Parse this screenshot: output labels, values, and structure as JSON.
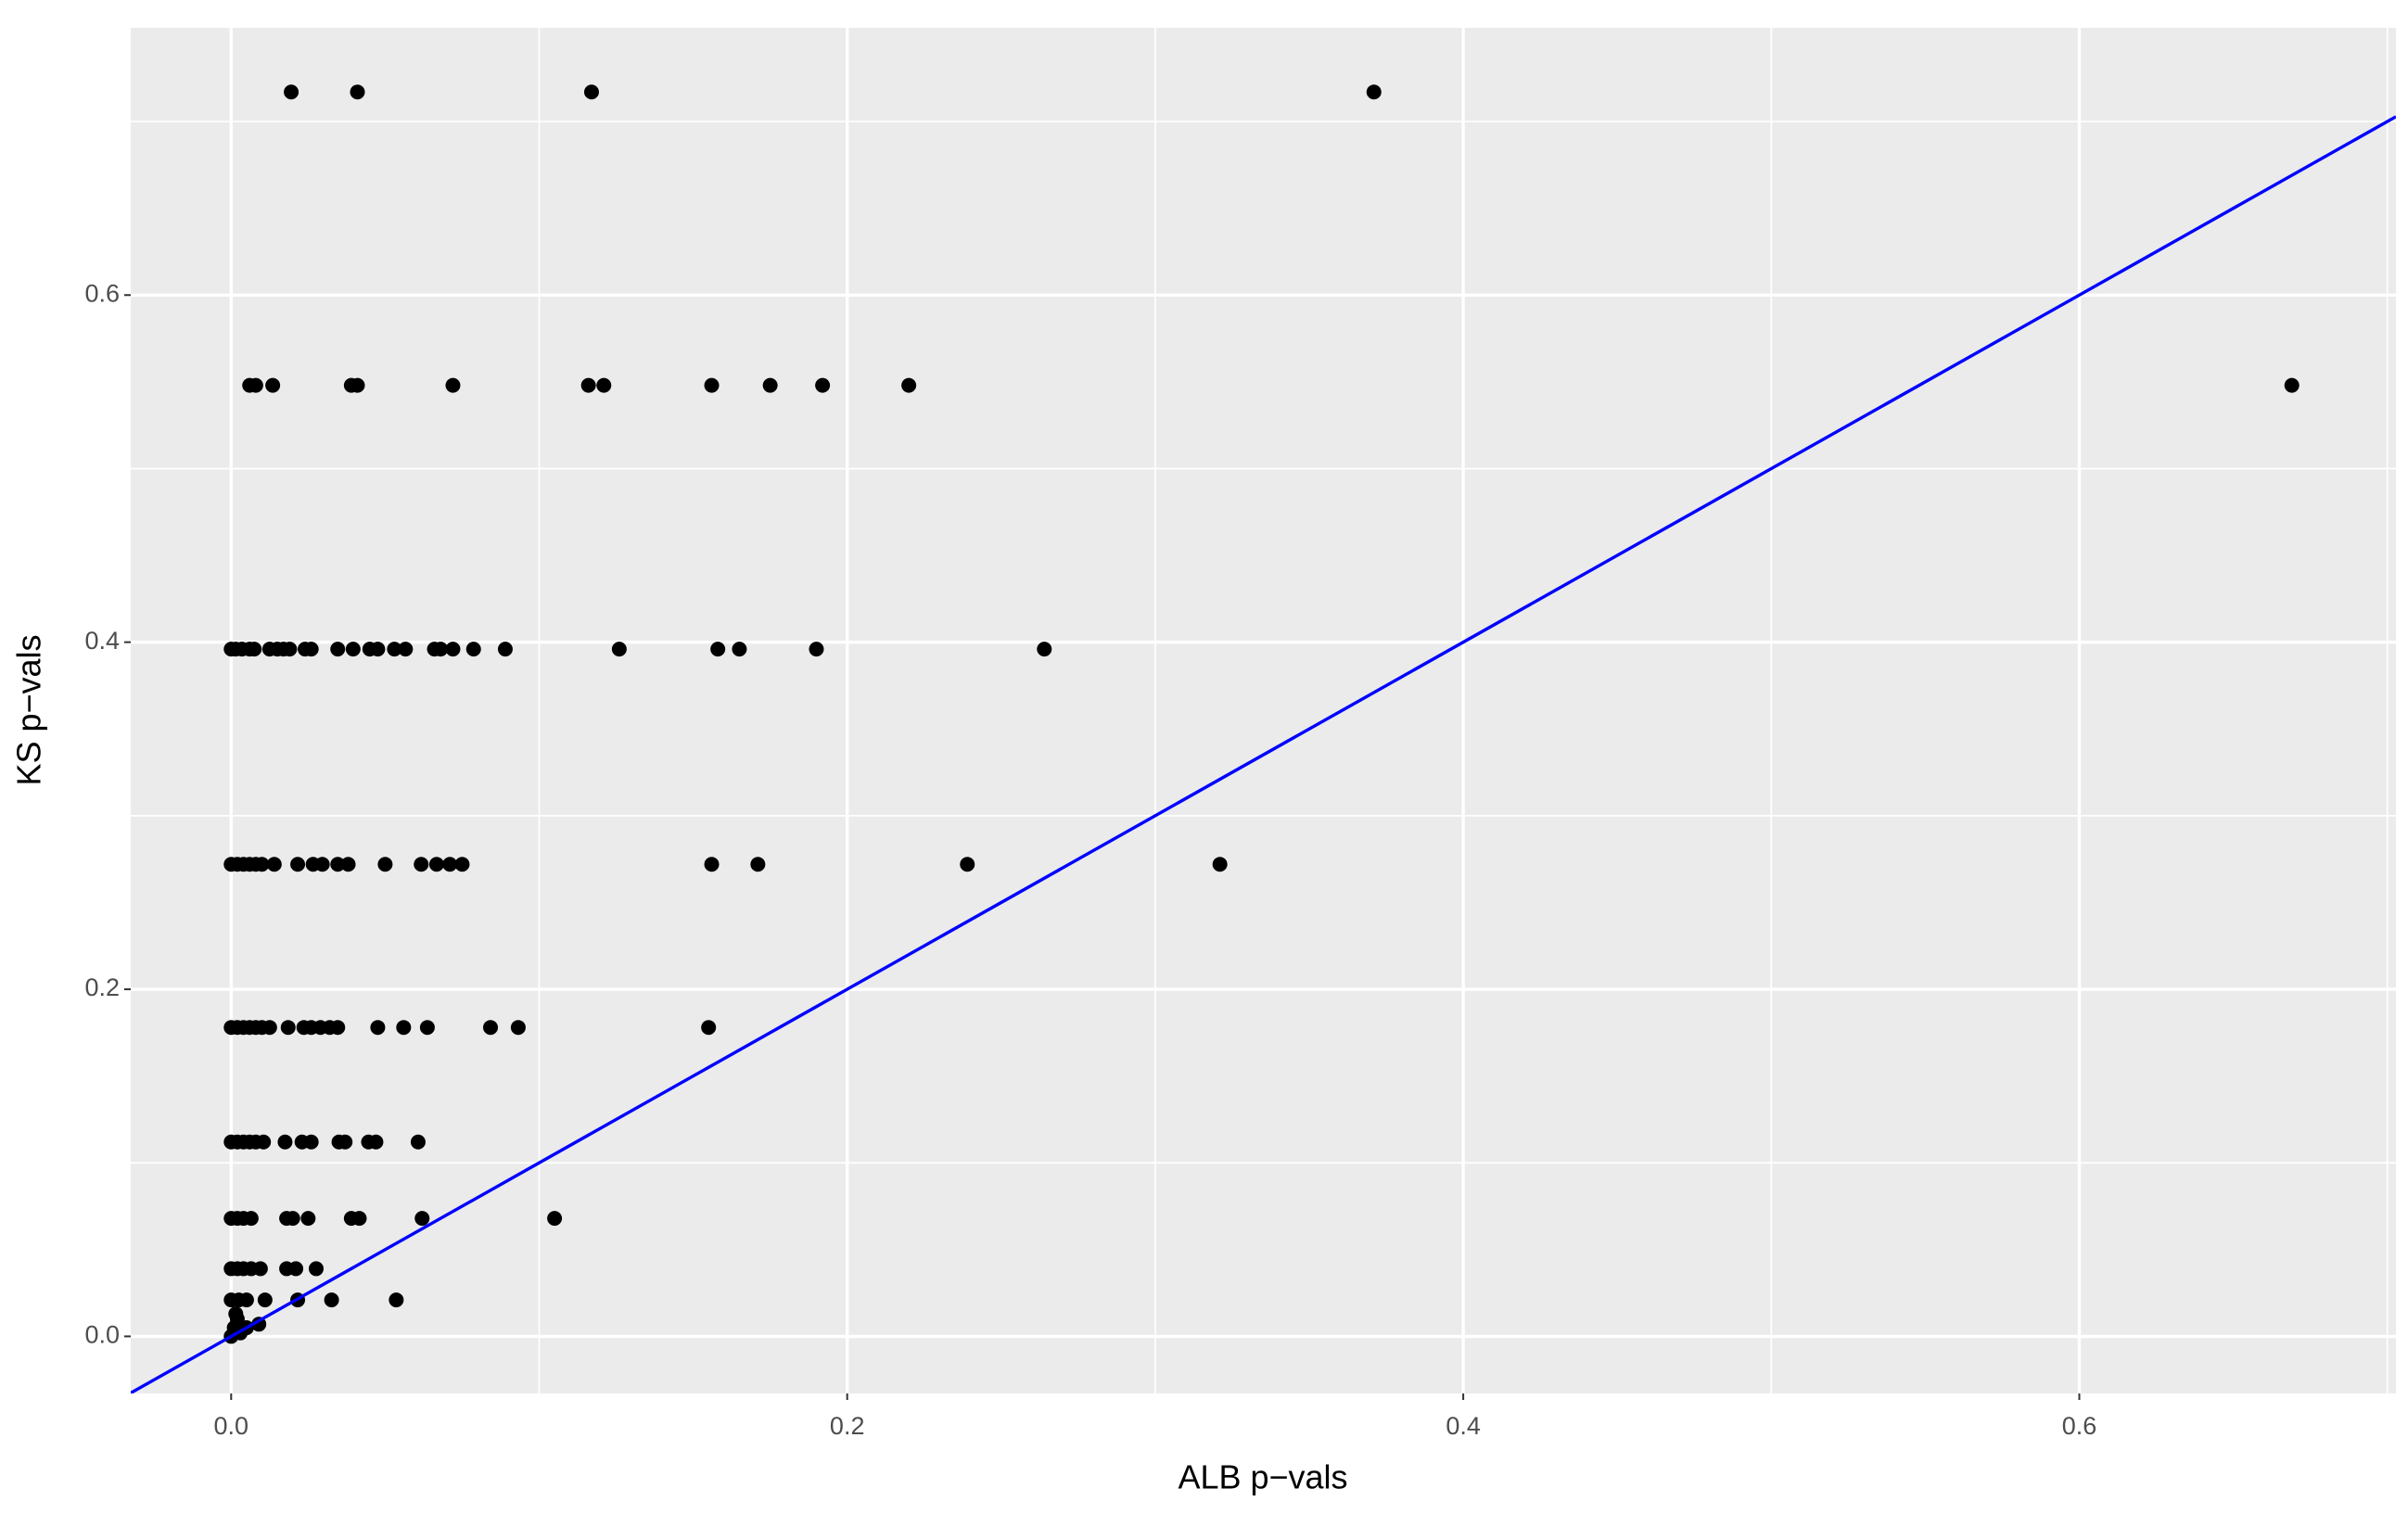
{
  "chart_data": {
    "type": "scatter",
    "x_label": "ALB p−vals",
    "y_label": "KS p−vals",
    "x": [
      0.0195,
      0.041,
      0.117,
      0.371,
      0.006,
      0.008,
      0.0135,
      0.039,
      0.041,
      0.072,
      0.116,
      0.121,
      0.156,
      0.175,
      0.192,
      0.22,
      0.669,
      0,
      0.0015,
      0.0035,
      0.006,
      0.0075,
      0.0125,
      0.015,
      0.017,
      0.019,
      0.024,
      0.026,
      0.0346,
      0.0396,
      0.045,
      0.0476,
      0.053,
      0.0566,
      0.066,
      0.068,
      0.072,
      0.0787,
      0.089,
      0.126,
      0.158,
      0.165,
      0.19,
      0.264,
      0,
      0.002,
      0.004,
      0.006,
      0.008,
      0.01,
      0.014,
      0.0216,
      0.0266,
      0.0296,
      0.0346,
      0.038,
      0.05,
      0.0617,
      0.0667,
      0.071,
      0.075,
      0.156,
      0.171,
      0.239,
      0.321,
      0,
      0.002,
      0.004,
      0.006,
      0.008,
      0.01,
      0.0125,
      0.0185,
      0.0236,
      0.026,
      0.029,
      0.032,
      0.0346,
      0.0476,
      0.056,
      0.0637,
      0.0842,
      0.0932,
      0.155,
      0,
      0.002,
      0.004,
      0.006,
      0.008,
      0.0105,
      0.0175,
      0.023,
      0.026,
      0.035,
      0.037,
      0.0446,
      0.047,
      0.0607,
      0,
      0.002,
      0.004,
      0.0065,
      0.018,
      0.02,
      0.025,
      0.039,
      0.0416,
      0.062,
      0.105,
      0,
      0.002,
      0.004,
      0.0065,
      0.0095,
      0.018,
      0.021,
      0.0276,
      0,
      0.0025,
      0.005,
      0.011,
      0.0216,
      0.0326,
      0.0536,
      0,
      0.001,
      0.002,
      0.003,
      0.005,
      0.009,
      0.0015
    ],
    "y": [
      0.717,
      0.717,
      0.717,
      0.717,
      0.548,
      0.548,
      0.548,
      0.548,
      0.548,
      0.548,
      0.548,
      0.548,
      0.548,
      0.548,
      0.548,
      0.548,
      0.548,
      0.396,
      0.396,
      0.396,
      0.396,
      0.396,
      0.396,
      0.396,
      0.396,
      0.396,
      0.396,
      0.396,
      0.396,
      0.396,
      0.396,
      0.396,
      0.396,
      0.396,
      0.396,
      0.396,
      0.396,
      0.396,
      0.396,
      0.396,
      0.396,
      0.396,
      0.396,
      0.396,
      0.272,
      0.272,
      0.272,
      0.272,
      0.272,
      0.272,
      0.272,
      0.272,
      0.272,
      0.272,
      0.272,
      0.272,
      0.272,
      0.272,
      0.272,
      0.272,
      0.272,
      0.272,
      0.272,
      0.272,
      0.272,
      0.178,
      0.178,
      0.178,
      0.178,
      0.178,
      0.178,
      0.178,
      0.178,
      0.178,
      0.178,
      0.178,
      0.178,
      0.178,
      0.178,
      0.178,
      0.178,
      0.178,
      0.178,
      0.178,
      0.112,
      0.112,
      0.112,
      0.112,
      0.112,
      0.112,
      0.112,
      0.112,
      0.112,
      0.112,
      0.112,
      0.112,
      0.112,
      0.112,
      0.068,
      0.068,
      0.068,
      0.068,
      0.068,
      0.068,
      0.068,
      0.068,
      0.068,
      0.068,
      0.068,
      0.039,
      0.039,
      0.039,
      0.039,
      0.039,
      0.039,
      0.039,
      0.039,
      0.021,
      0.021,
      0.021,
      0.021,
      0.021,
      0.021,
      0.021,
      0,
      0.005,
      0.01,
      0.002,
      0.005,
      0.007,
      0.013
    ],
    "color": "#000000",
    "reference_line": {
      "slope": 1,
      "intercept": 0,
      "color": "#0000ff"
    },
    "xlim": [
      -0.0326,
      0.7028
    ],
    "ylim": [
      -0.0329,
      0.754
    ],
    "xticks": [
      {
        "value": 0,
        "label": "0.0"
      },
      0.2,
      0.4,
      0.6
    ],
    "yticks": [
      {
        "value": 0,
        "label": "0.0"
      },
      0.2,
      0.4,
      0.6
    ],
    "x_minor_grid": [
      0.1,
      0.3,
      0.5,
      0.7
    ],
    "y_minor_grid": [
      0.1,
      0.3,
      0.5,
      0.7
    ],
    "grid": true
  }
}
